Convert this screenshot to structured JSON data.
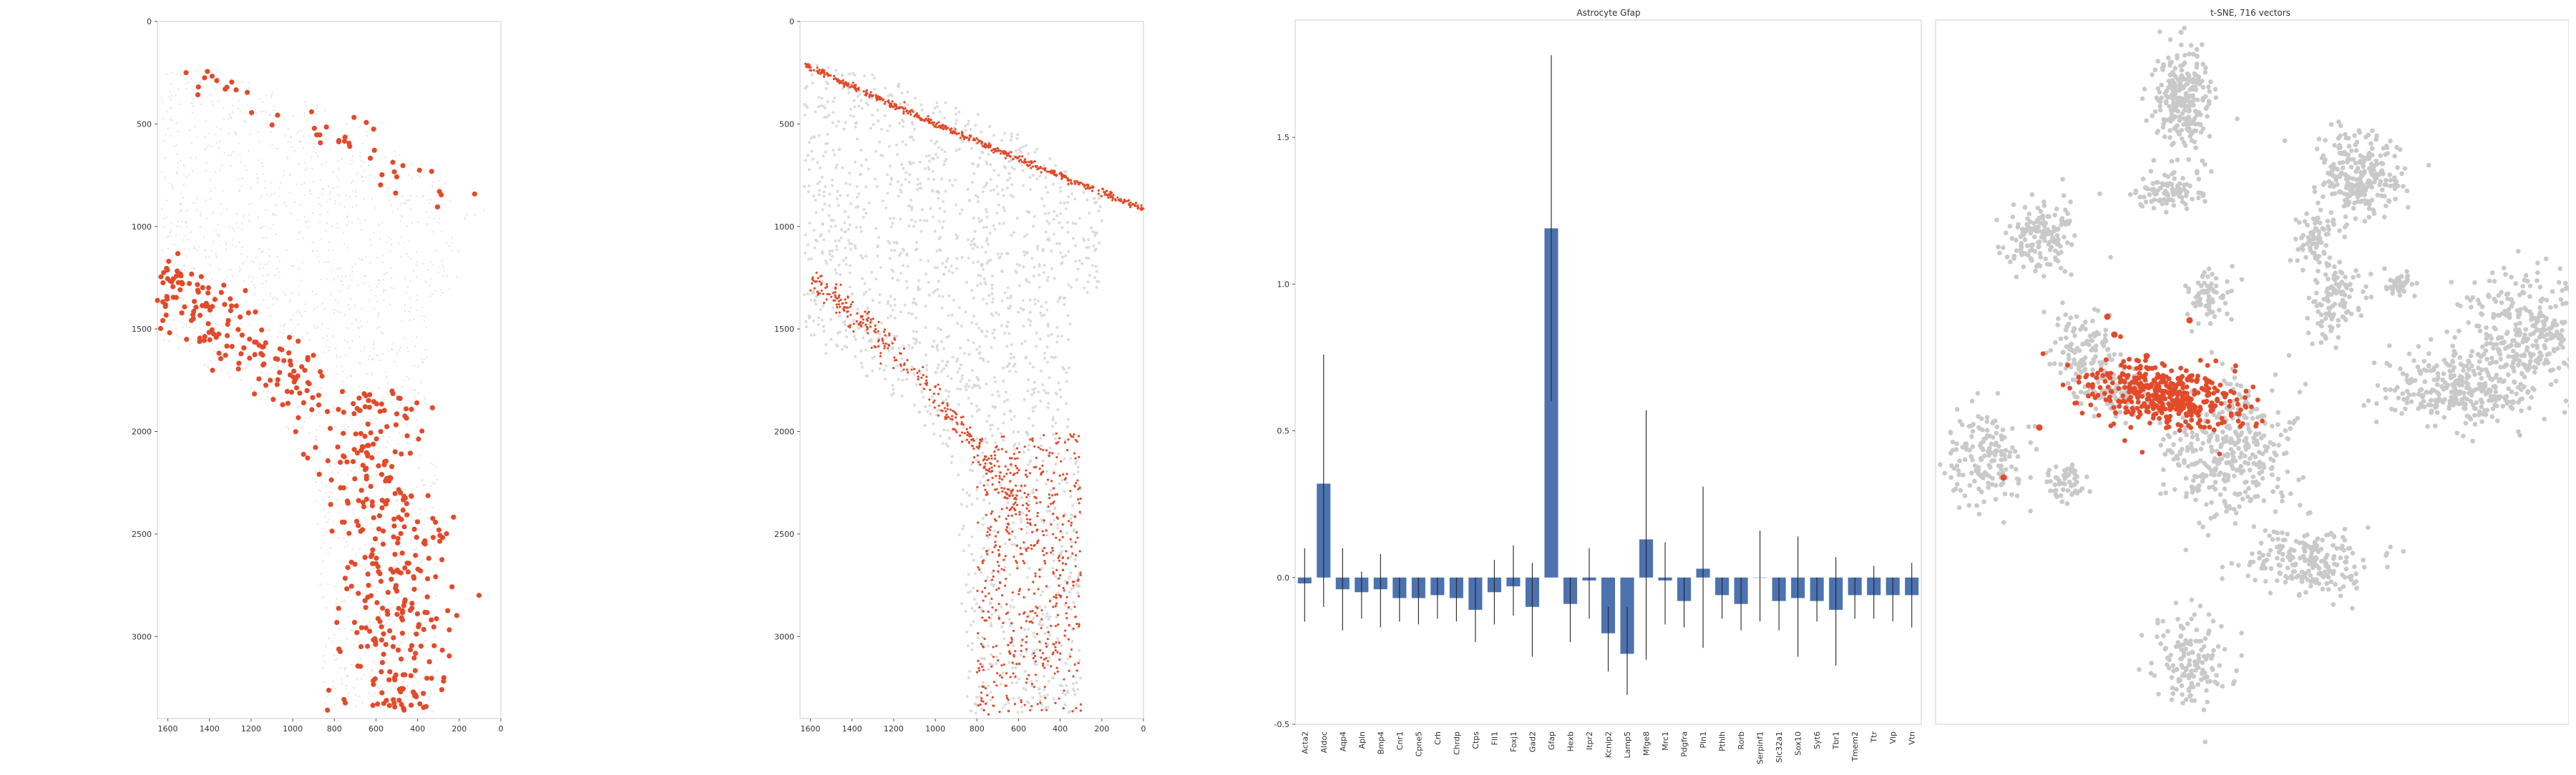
{
  "colors": {
    "highlight": "#e34a2a",
    "background_cells": "#d6d6d6",
    "bar": "#4c72b0",
    "errbar": "#222222",
    "tsne_gray": "#c9c9c9",
    "axes": "#cccccc"
  },
  "chart_data": [
    {
      "type": "scatter",
      "panel": "spatial-left",
      "title": "",
      "xlim": [
        1650,
        0
      ],
      "ylim": [
        0,
        3400
      ],
      "x_ticks": [
        "1600",
        "1400",
        "1200",
        "1000",
        "800",
        "600",
        "400",
        "200",
        "0"
      ],
      "y_ticks": [
        "0",
        "500",
        "1000",
        "1500",
        "2000",
        "2500",
        "3000"
      ],
      "y_inverted": true,
      "grid": false,
      "series": [
        {
          "role": "background cells",
          "style": "light gray points"
        },
        {
          "role": "highlighted cells",
          "style": "red points"
        }
      ]
    },
    {
      "type": "scatter",
      "panel": "spatial-middle",
      "title": "",
      "xlim": [
        1650,
        0
      ],
      "ylim": [
        0,
        3400
      ],
      "x_ticks": [
        "1600",
        "1400",
        "1200",
        "1000",
        "800",
        "600",
        "400",
        "200",
        "0"
      ],
      "y_ticks": [
        "0",
        "500",
        "1000",
        "1500",
        "2000",
        "2500",
        "3000"
      ],
      "y_inverted": true,
      "grid": false,
      "series": [
        {
          "role": "background cells",
          "style": "light gray points"
        },
        {
          "role": "highlighted cells",
          "style": "small red points"
        }
      ]
    },
    {
      "type": "bar",
      "panel": "gene-bars",
      "title": "Astrocyte Gfap",
      "xlabel": "",
      "ylabel": "",
      "ylim": [
        -0.5,
        1.9
      ],
      "y_ticks": [
        -0.5,
        0.0,
        0.5,
        1.0,
        1.5
      ],
      "grid": false,
      "categories": [
        "Acta2",
        "Aldoc",
        "Aqp4",
        "Apln",
        "Bmp4",
        "Cnr1",
        "Cpne5",
        "Crh",
        "Chrdp",
        "Ctps",
        "Fll1",
        "Foxj1",
        "Gad2",
        "Gfap",
        "Hexb",
        "Itpr2",
        "Kcnip2",
        "Lamp5",
        "Mfge8",
        "Mrc1",
        "Pdgfra",
        "Pln1",
        "Pthlh",
        "Rorb",
        "Serpinf1",
        "Slc32a1",
        "Sox10",
        "Syt6",
        "Tbr1",
        "Tmem2",
        "Ttr",
        "Vip",
        "Vtn"
      ],
      "values": [
        -0.02,
        0.32,
        -0.04,
        -0.05,
        -0.04,
        -0.07,
        -0.07,
        -0.06,
        -0.07,
        -0.11,
        -0.05,
        -0.03,
        -0.1,
        1.19,
        -0.09,
        -0.01,
        -0.19,
        -0.26,
        0.13,
        -0.01,
        -0.08,
        0.03,
        -0.06,
        -0.09,
        0.0,
        -0.08,
        -0.07,
        -0.08,
        -0.11,
        -0.06,
        -0.06,
        -0.06,
        -0.06
      ],
      "err_low": [
        -0.15,
        -0.1,
        -0.18,
        -0.14,
        -0.17,
        -0.15,
        -0.16,
        -0.14,
        -0.15,
        -0.22,
        -0.16,
        -0.13,
        -0.27,
        0.6,
        -0.22,
        -0.14,
        -0.32,
        -0.4,
        -0.28,
        -0.16,
        -0.17,
        -0.24,
        -0.14,
        -0.18,
        -0.15,
        -0.18,
        -0.27,
        -0.15,
        -0.3,
        -0.14,
        -0.14,
        -0.15,
        -0.17
      ],
      "err_high": [
        0.1,
        0.76,
        0.1,
        0.02,
        0.08,
        0.0,
        0.0,
        0.0,
        0.0,
        0.0,
        0.06,
        0.11,
        0.05,
        1.78,
        0.0,
        0.1,
        -0.1,
        -0.1,
        0.57,
        0.12,
        0.0,
        0.31,
        0.0,
        0.0,
        0.16,
        0.0,
        0.14,
        0.0,
        0.07,
        0.0,
        0.04,
        0.0,
        0.05
      ]
    },
    {
      "type": "scatter",
      "panel": "tsne",
      "title": "t-SNE, 716 vectors",
      "xlabel": "",
      "ylabel": "",
      "grid": false,
      "series": [
        {
          "role": "all cells",
          "style": "gray points, multiple clusters"
        },
        {
          "role": "highlighted cluster",
          "style": "red points"
        }
      ]
    }
  ]
}
